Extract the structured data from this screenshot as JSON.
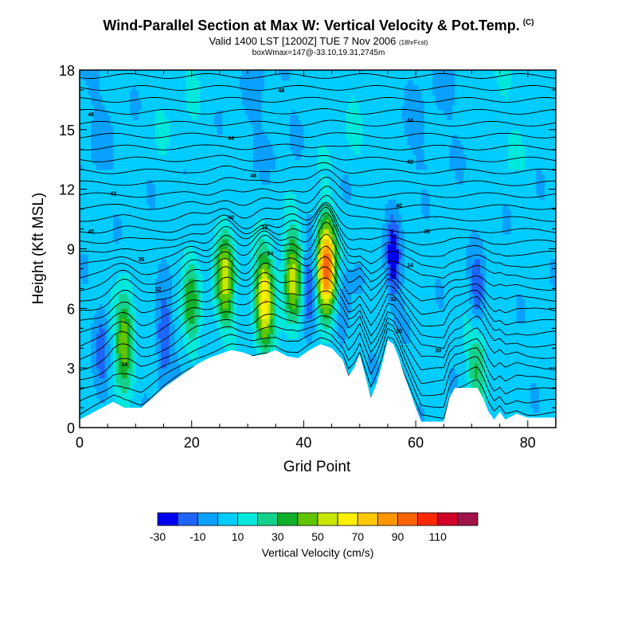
{
  "header": {
    "title": "Wind-Parallel Section at Max W: Vertical Velocity & Pot.Temp.",
    "title_mark": "(C)",
    "subtitle": "Valid 1400 LST [1200Z] TUE 7 Nov 2006",
    "subtitle_small": "(18hrFcst)",
    "subtitle2": "boxWmax=147@-33.10,19.31,2745m"
  },
  "chart_data": {
    "type": "heatmap",
    "xlabel": "Grid Point",
    "ylabel": "Height (Kft MSL)",
    "xlim": [
      0,
      85
    ],
    "ylim": [
      0,
      18
    ],
    "x_ticks": [
      "0",
      "20",
      "40",
      "60",
      "80"
    ],
    "y_ticks": [
      "0",
      "3",
      "6",
      "9",
      "12",
      "15",
      "18"
    ],
    "colorbar": {
      "label": "Vertical Velocity (cm/s)",
      "tick_labels": [
        "-30",
        "-10",
        "10",
        "30",
        "50",
        "70",
        "90",
        "110"
      ],
      "levels": [
        -30,
        -20,
        -10,
        0,
        10,
        20,
        30,
        40,
        50,
        60,
        70,
        80,
        90,
        100,
        110,
        120
      ],
      "colors": [
        "#0000f0",
        "#1e64ff",
        "#0aa0ff",
        "#00ccff",
        "#00e8dc",
        "#14d28c",
        "#10b02c",
        "#60c400",
        "#c8e600",
        "#fff000",
        "#ffc800",
        "#ff9600",
        "#ff6400",
        "#ff2800",
        "#d20028"
      ],
      "end_color": "#a0144a"
    },
    "terrain": [
      [
        0,
        0.4
      ],
      [
        2,
        0.7
      ],
      [
        4,
        1.0
      ],
      [
        6,
        1.3
      ],
      [
        8,
        1.0
      ],
      [
        11,
        1.0
      ],
      [
        13,
        1.5
      ],
      [
        15,
        2.0
      ],
      [
        17,
        2.4
      ],
      [
        19,
        2.8
      ],
      [
        21,
        3.2
      ],
      [
        23,
        3.5
      ],
      [
        25,
        3.7
      ],
      [
        27,
        3.9
      ],
      [
        29,
        3.8
      ],
      [
        31,
        3.6
      ],
      [
        33,
        3.7
      ],
      [
        35,
        3.9
      ],
      [
        37,
        3.6
      ],
      [
        39,
        3.5
      ],
      [
        41,
        3.9
      ],
      [
        43,
        4.2
      ],
      [
        45,
        4.0
      ],
      [
        47,
        3.4
      ],
      [
        48,
        2.6
      ],
      [
        49,
        3.0
      ],
      [
        50,
        3.7
      ],
      [
        51,
        2.6
      ],
      [
        52,
        1.5
      ],
      [
        53,
        2.2
      ],
      [
        54,
        3.2
      ],
      [
        55,
        4.4
      ],
      [
        56,
        4.2
      ],
      [
        57,
        3.5
      ],
      [
        58,
        2.6
      ],
      [
        59,
        1.8
      ],
      [
        60,
        1.0
      ],
      [
        61,
        0.3
      ],
      [
        65,
        0.3
      ],
      [
        66,
        1.5
      ],
      [
        67,
        2.0
      ],
      [
        71,
        2.0
      ],
      [
        72,
        1.5
      ],
      [
        73,
        0.8
      ],
      [
        74,
        0.4
      ],
      [
        75,
        0.8
      ],
      [
        76,
        0.4
      ],
      [
        78,
        0.7
      ],
      [
        80,
        0.5
      ],
      [
        85,
        0.5
      ]
    ],
    "updrafts": [
      {
        "x": 8,
        "z": 4.5,
        "peak": 45
      },
      {
        "x": 20,
        "z": 6.5,
        "peak": 30
      },
      {
        "x": 26,
        "z": 7.5,
        "peak": 50
      },
      {
        "x": 33,
        "z": 6.5,
        "peak": 65
      },
      {
        "x": 38,
        "z": 7.5,
        "peak": 50
      },
      {
        "x": 44,
        "z": 8.0,
        "peak": 95
      },
      {
        "x": 71,
        "z": 3.5,
        "peak": 30
      }
    ],
    "downdrafts": [
      {
        "x": 4,
        "z": 4.0,
        "peak": -18
      },
      {
        "x": 15,
        "z": 4.5,
        "peak": -25
      },
      {
        "x": 41,
        "z": 7.0,
        "peak": -30
      },
      {
        "x": 47,
        "z": 6.0,
        "peak": -15
      },
      {
        "x": 56,
        "z": 8.5,
        "peak": -30
      },
      {
        "x": 71,
        "z": 6.5,
        "peak": -25
      }
    ],
    "isentrope_labels": [
      {
        "text": "46",
        "x": 2,
        "z": 15.8
      },
      {
        "text": "44",
        "x": 27,
        "z": 14.6
      },
      {
        "text": "48",
        "x": 36,
        "z": 17.0
      },
      {
        "text": "44",
        "x": 59,
        "z": 15.5
      },
      {
        "text": "46",
        "x": 31,
        "z": 12.7
      },
      {
        "text": "42",
        "x": 59,
        "z": 13.4
      },
      {
        "text": "42",
        "x": 6,
        "z": 11.8
      },
      {
        "text": "40",
        "x": 27,
        "z": 10.6
      },
      {
        "text": "40",
        "x": 2,
        "z": 9.9
      },
      {
        "text": "40",
        "x": 57,
        "z": 11.2
      },
      {
        "text": "38",
        "x": 33,
        "z": 10.1
      },
      {
        "text": "36",
        "x": 62,
        "z": 9.9
      },
      {
        "text": "36",
        "x": 11,
        "z": 8.5
      },
      {
        "text": "34",
        "x": 34,
        "z": 8.8
      },
      {
        "text": "34",
        "x": 59,
        "z": 8.2
      },
      {
        "text": "32",
        "x": 14,
        "z": 7.0
      },
      {
        "text": "32",
        "x": 56,
        "z": 6.5
      },
      {
        "text": "30",
        "x": 57,
        "z": 4.9
      },
      {
        "text": "30",
        "x": 64,
        "z": 3.9
      },
      {
        "text": "34",
        "x": 8,
        "z": 3.2
      }
    ]
  }
}
